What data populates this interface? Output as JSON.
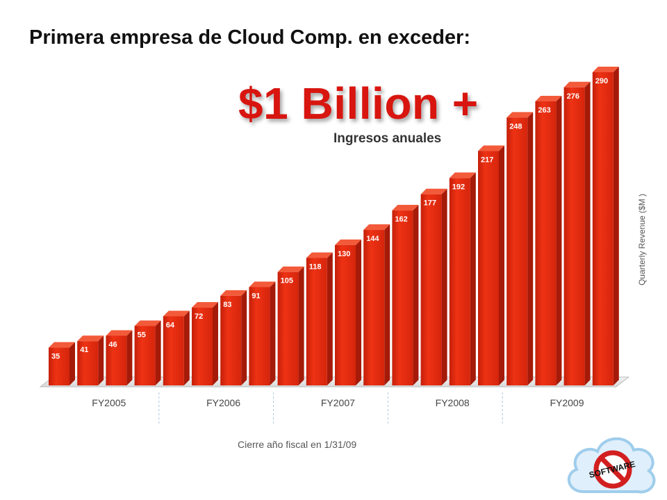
{
  "title": "Primera empresa de Cloud Comp. en exceder:",
  "headline": "$1 Billion +",
  "subheadline": "Ingresos anuales",
  "footnote": "Cierre año fiscal en 1/31/09",
  "logo": {
    "text": "SOFTWARE",
    "icon": "no-software-cloud-logo"
  },
  "colors": {
    "bar_front": "#e52b10",
    "bar_side": "#a51a08",
    "bar_top": "#f25a3a",
    "headline": "#d8150f"
  },
  "chart_data": {
    "type": "bar",
    "ylabel": "Quarterly Revenue ($M )",
    "xlabel": "",
    "values": [
      35,
      41,
      46,
      55,
      64,
      72,
      83,
      91,
      105,
      118,
      130,
      144,
      162,
      177,
      192,
      217,
      248,
      263,
      276,
      290
    ],
    "groups": [
      "FY2005",
      "FY2006",
      "FY2007",
      "FY2008",
      "FY2009"
    ],
    "group_sizes": [
      4,
      4,
      4,
      4,
      4
    ],
    "ylim": [
      0,
      300
    ],
    "grid": false,
    "legend": "none"
  }
}
